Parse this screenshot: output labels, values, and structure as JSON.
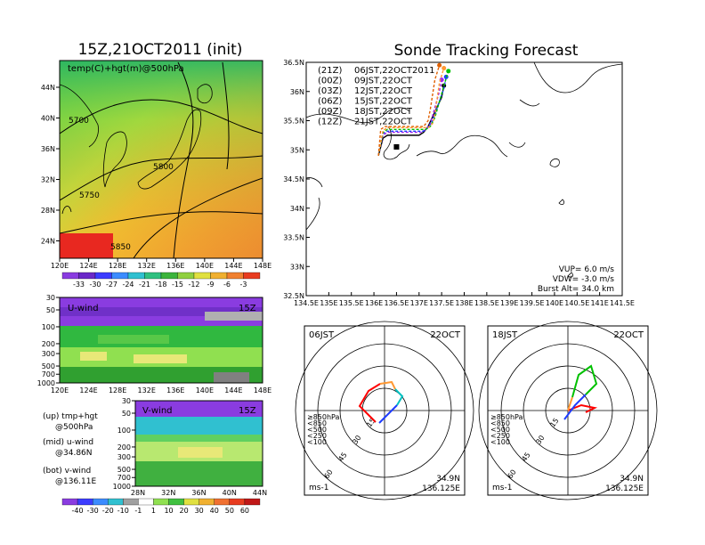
{
  "left": {
    "main_title": "15Z,21OCT2011 (init)",
    "map_label": "temp(C)+hgt(m)@500hPa",
    "map_lon_ticks": [
      "120E",
      "124E",
      "128E",
      "132E",
      "136E",
      "140E",
      "144E",
      "148E"
    ],
    "map_lat_ticks": [
      "44N",
      "40N",
      "36N",
      "32N",
      "28N",
      "24N"
    ],
    "contour_labels": [
      "5700",
      "5750",
      "5800",
      "5850"
    ],
    "temp_colorbar": [
      "-33",
      "-30",
      "-27",
      "-24",
      "-21",
      "-18",
      "-15",
      "-12",
      "-9",
      "-6",
      "-3"
    ],
    "u_label": "U-wind",
    "u_time": "15Z",
    "u_lon_ticks": [
      "120E",
      "124E",
      "128E",
      "132E",
      "136E",
      "140E",
      "144E",
      "148E"
    ],
    "p_ticks": [
      "30",
      "50",
      "100",
      "200",
      "300",
      "500",
      "700",
      "1000"
    ],
    "v_label": "V-wind",
    "v_time": "15Z",
    "v_lat_ticks": [
      "28N",
      "32N",
      "36N",
      "40N",
      "44N"
    ],
    "notes": [
      {
        "a": "(up) tmp+hgt",
        "b": "@500hPa"
      },
      {
        "a": "(mid) u-wind",
        "b": "@34.86N"
      },
      {
        "a": "(bot) v-wind",
        "b": "@136.11E"
      }
    ],
    "wind_colorbar": [
      "-40",
      "-30",
      "-20",
      "-10",
      "-1",
      "1",
      "10",
      "20",
      "30",
      "40",
      "50",
      "60"
    ]
  },
  "right": {
    "title": "Sonde Tracking Forecast",
    "lat_ticks": [
      "36.5N",
      "36N",
      "35.5N",
      "35N",
      "34.5N",
      "34N",
      "33.5N",
      "33N",
      "32.5N"
    ],
    "lon_ticks": [
      "134.5E",
      "135E",
      "135.5E",
      "136E",
      "136.5E",
      "137E",
      "137.5E",
      "138E",
      "138.5E",
      "139E",
      "139.5E",
      "140E",
      "140.5E",
      "141E",
      "141.5E"
    ],
    "legend": [
      {
        "init": "(21Z)",
        "when": "06JST,22OCT2011",
        "color": "#000000"
      },
      {
        "init": "(00Z)",
        "when": "09JST,22OCT",
        "color": "#a020f0"
      },
      {
        "init": "(03Z)",
        "when": "12JST,22OCT",
        "color": "#1e3cff"
      },
      {
        "init": "(06Z)",
        "when": "15JST,22OCT",
        "color": "#00c000"
      },
      {
        "init": "(09Z)",
        "when": "18JST,22OCT",
        "color": "#ff9933"
      },
      {
        "init": "(12Z)",
        "when": "21JST,22OCT",
        "color": "#e06000"
      }
    ],
    "params": [
      "VUP=  6.0 m/s",
      "VDW= -3.0 m/s",
      "Burst Alt= 34.0 km"
    ]
  },
  "hodographs": [
    {
      "time": "06JST",
      "date": "22OCT",
      "unit": "ms-1",
      "loc_lat": "34.9N",
      "loc_lon": "136.125E",
      "ring_labels": [
        "15",
        "30",
        "45",
        "60"
      ],
      "levels": [
        {
          "label": "≥850hPa",
          "color": "#ff0000"
        },
        {
          "label": "<850",
          "color": "#ff9933"
        },
        {
          "label": "<500",
          "color": "#00c000"
        },
        {
          "label": "<250",
          "color": "#00c0c0"
        },
        {
          "label": "<100",
          "color": "#1e3cff"
        }
      ]
    },
    {
      "time": "18JST",
      "date": "22OCT",
      "unit": "ms-1",
      "loc_lat": "34.9N",
      "loc_lon": "136.125E",
      "ring_labels": [
        "15",
        "30",
        "45",
        "60"
      ],
      "levels": [
        {
          "label": "≥850hPa",
          "color": "#ff0000"
        },
        {
          "label": "<850",
          "color": "#ff9933"
        },
        {
          "label": "<500",
          "color": "#00c000"
        },
        {
          "label": "<250",
          "color": "#00c0c0"
        },
        {
          "label": "<100",
          "color": "#1e3cff"
        }
      ]
    }
  ],
  "chart_data": {
    "type": "line",
    "title": "Sonde Tracking Forecast",
    "xlim": [
      134.5,
      141.5
    ],
    "ylim": [
      32.5,
      36.5
    ],
    "series": [
      {
        "name": "(21Z) 06JST,22OCT2011",
        "color": "#000000",
        "lon": [
          136.1,
          136.2,
          136.3,
          137.0,
          137.1,
          137.2,
          137.5,
          137.55
        ],
        "lat": [
          34.9,
          35.2,
          35.25,
          35.25,
          35.3,
          35.4,
          35.9,
          36.1
        ]
      },
      {
        "name": "(00Z) 09JST,22OCT",
        "color": "#a020f0",
        "lon": [
          136.1,
          136.2,
          136.3,
          137.05,
          137.15,
          137.25,
          137.45,
          137.5
        ],
        "lat": [
          34.9,
          35.25,
          35.3,
          35.3,
          35.35,
          35.45,
          36.0,
          36.2
        ]
      },
      {
        "name": "(03Z) 12JST,22OCT",
        "color": "#1e3cff",
        "lon": [
          136.1,
          136.2,
          136.3,
          137.1,
          137.2,
          137.3,
          137.55,
          137.6
        ],
        "lat": [
          34.9,
          35.28,
          35.32,
          35.32,
          35.38,
          35.5,
          36.05,
          36.25
        ]
      },
      {
        "name": "(06Z) 15JST,22OCT",
        "color": "#00c000",
        "lon": [
          136.1,
          136.2,
          136.3,
          137.15,
          137.25,
          137.35,
          137.55,
          137.65
        ],
        "lat": [
          34.9,
          35.3,
          35.35,
          35.35,
          35.4,
          35.55,
          36.1,
          36.35
        ]
      },
      {
        "name": "(09Z) 18JST,22OCT",
        "color": "#ff9933",
        "lon": [
          136.1,
          136.2,
          136.3,
          137.2,
          137.3,
          137.35,
          137.45,
          137.55
        ],
        "lat": [
          34.9,
          35.33,
          35.38,
          35.38,
          35.45,
          35.6,
          36.15,
          36.4
        ]
      },
      {
        "name": "(12Z) 21JST,22OCT",
        "color": "#e06000",
        "lon": [
          136.1,
          136.15,
          136.25,
          137.1,
          137.2,
          137.25,
          137.35,
          137.45
        ],
        "lat": [
          34.9,
          35.35,
          35.4,
          35.4,
          35.5,
          35.7,
          36.2,
          36.45
        ]
      }
    ]
  }
}
